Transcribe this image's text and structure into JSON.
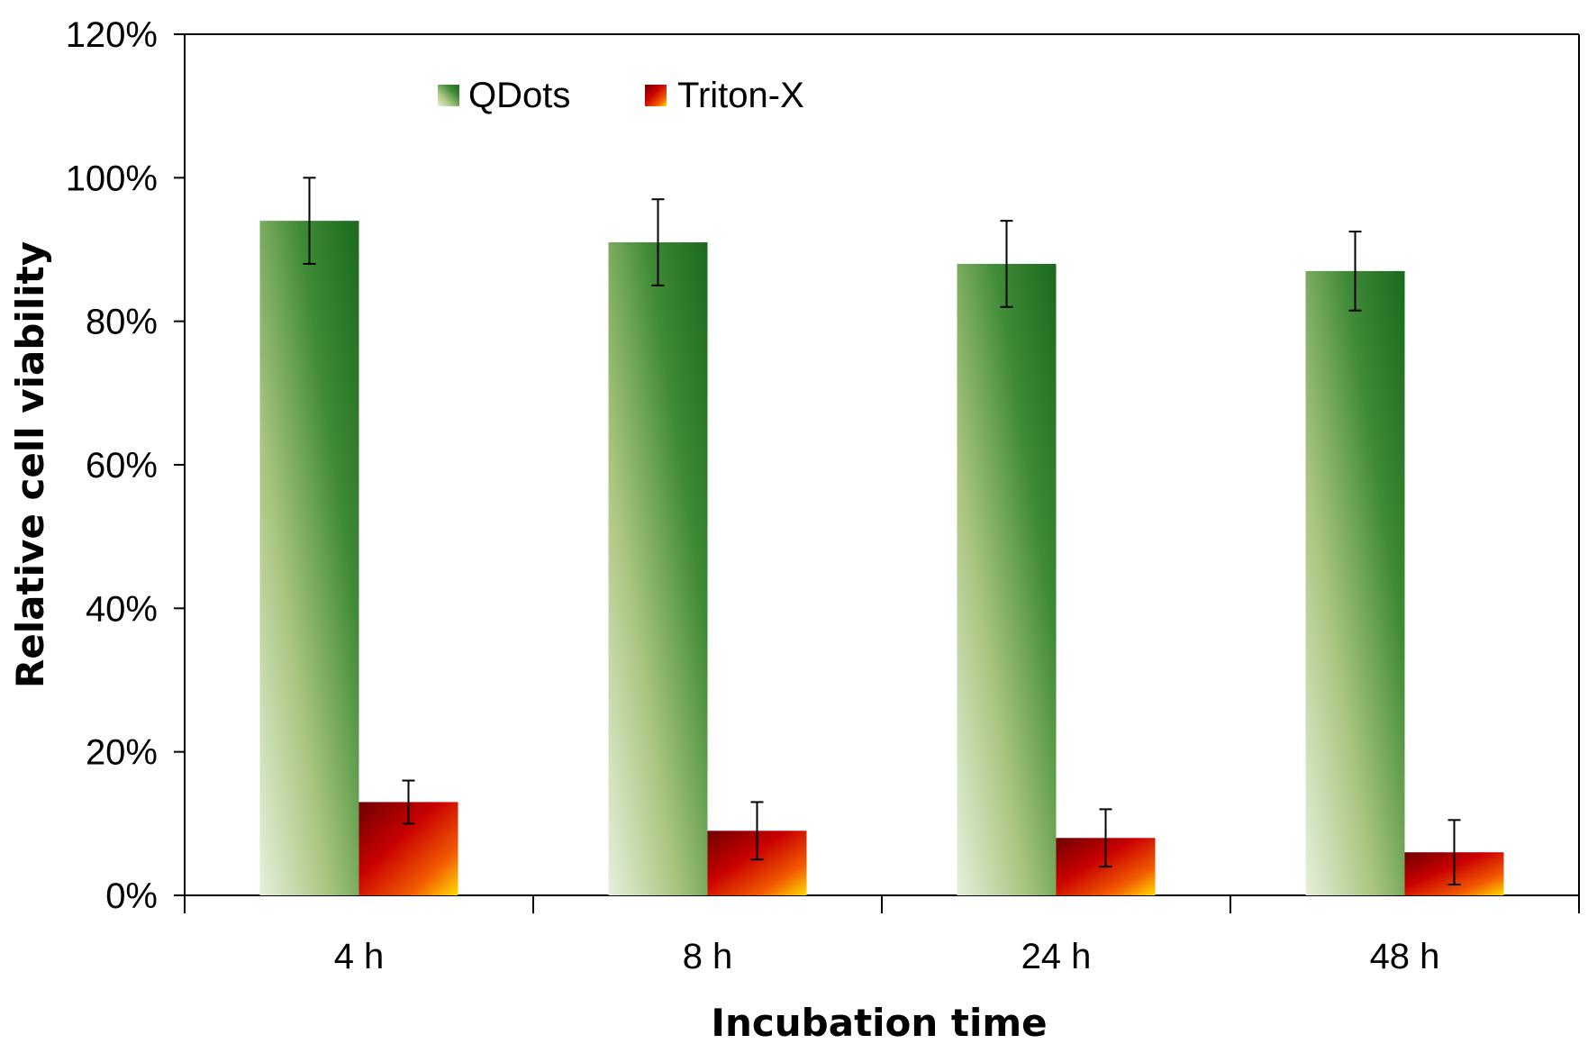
{
  "chart_data": {
    "type": "bar",
    "title": "",
    "xlabel": "Incubation time",
    "ylabel": "Relative cell viability",
    "categories": [
      "4 h",
      "8 h",
      "24 h",
      "48 h"
    ],
    "yticks": [
      "0%",
      "20%",
      "40%",
      "60%",
      "80%",
      "100%",
      "120%"
    ],
    "ylim": [
      0,
      120
    ],
    "grid": false,
    "legend_position": "top-left",
    "series": [
      {
        "name": "QDots",
        "values": [
          94,
          91,
          88,
          87
        ],
        "errors": [
          6,
          6,
          6,
          5.5
        ],
        "color": "#1e7320"
      },
      {
        "name": "Triton-X",
        "values": [
          13,
          9,
          8,
          6
        ],
        "errors": [
          3,
          4,
          4,
          4.5
        ],
        "color": "#a80000"
      }
    ]
  }
}
